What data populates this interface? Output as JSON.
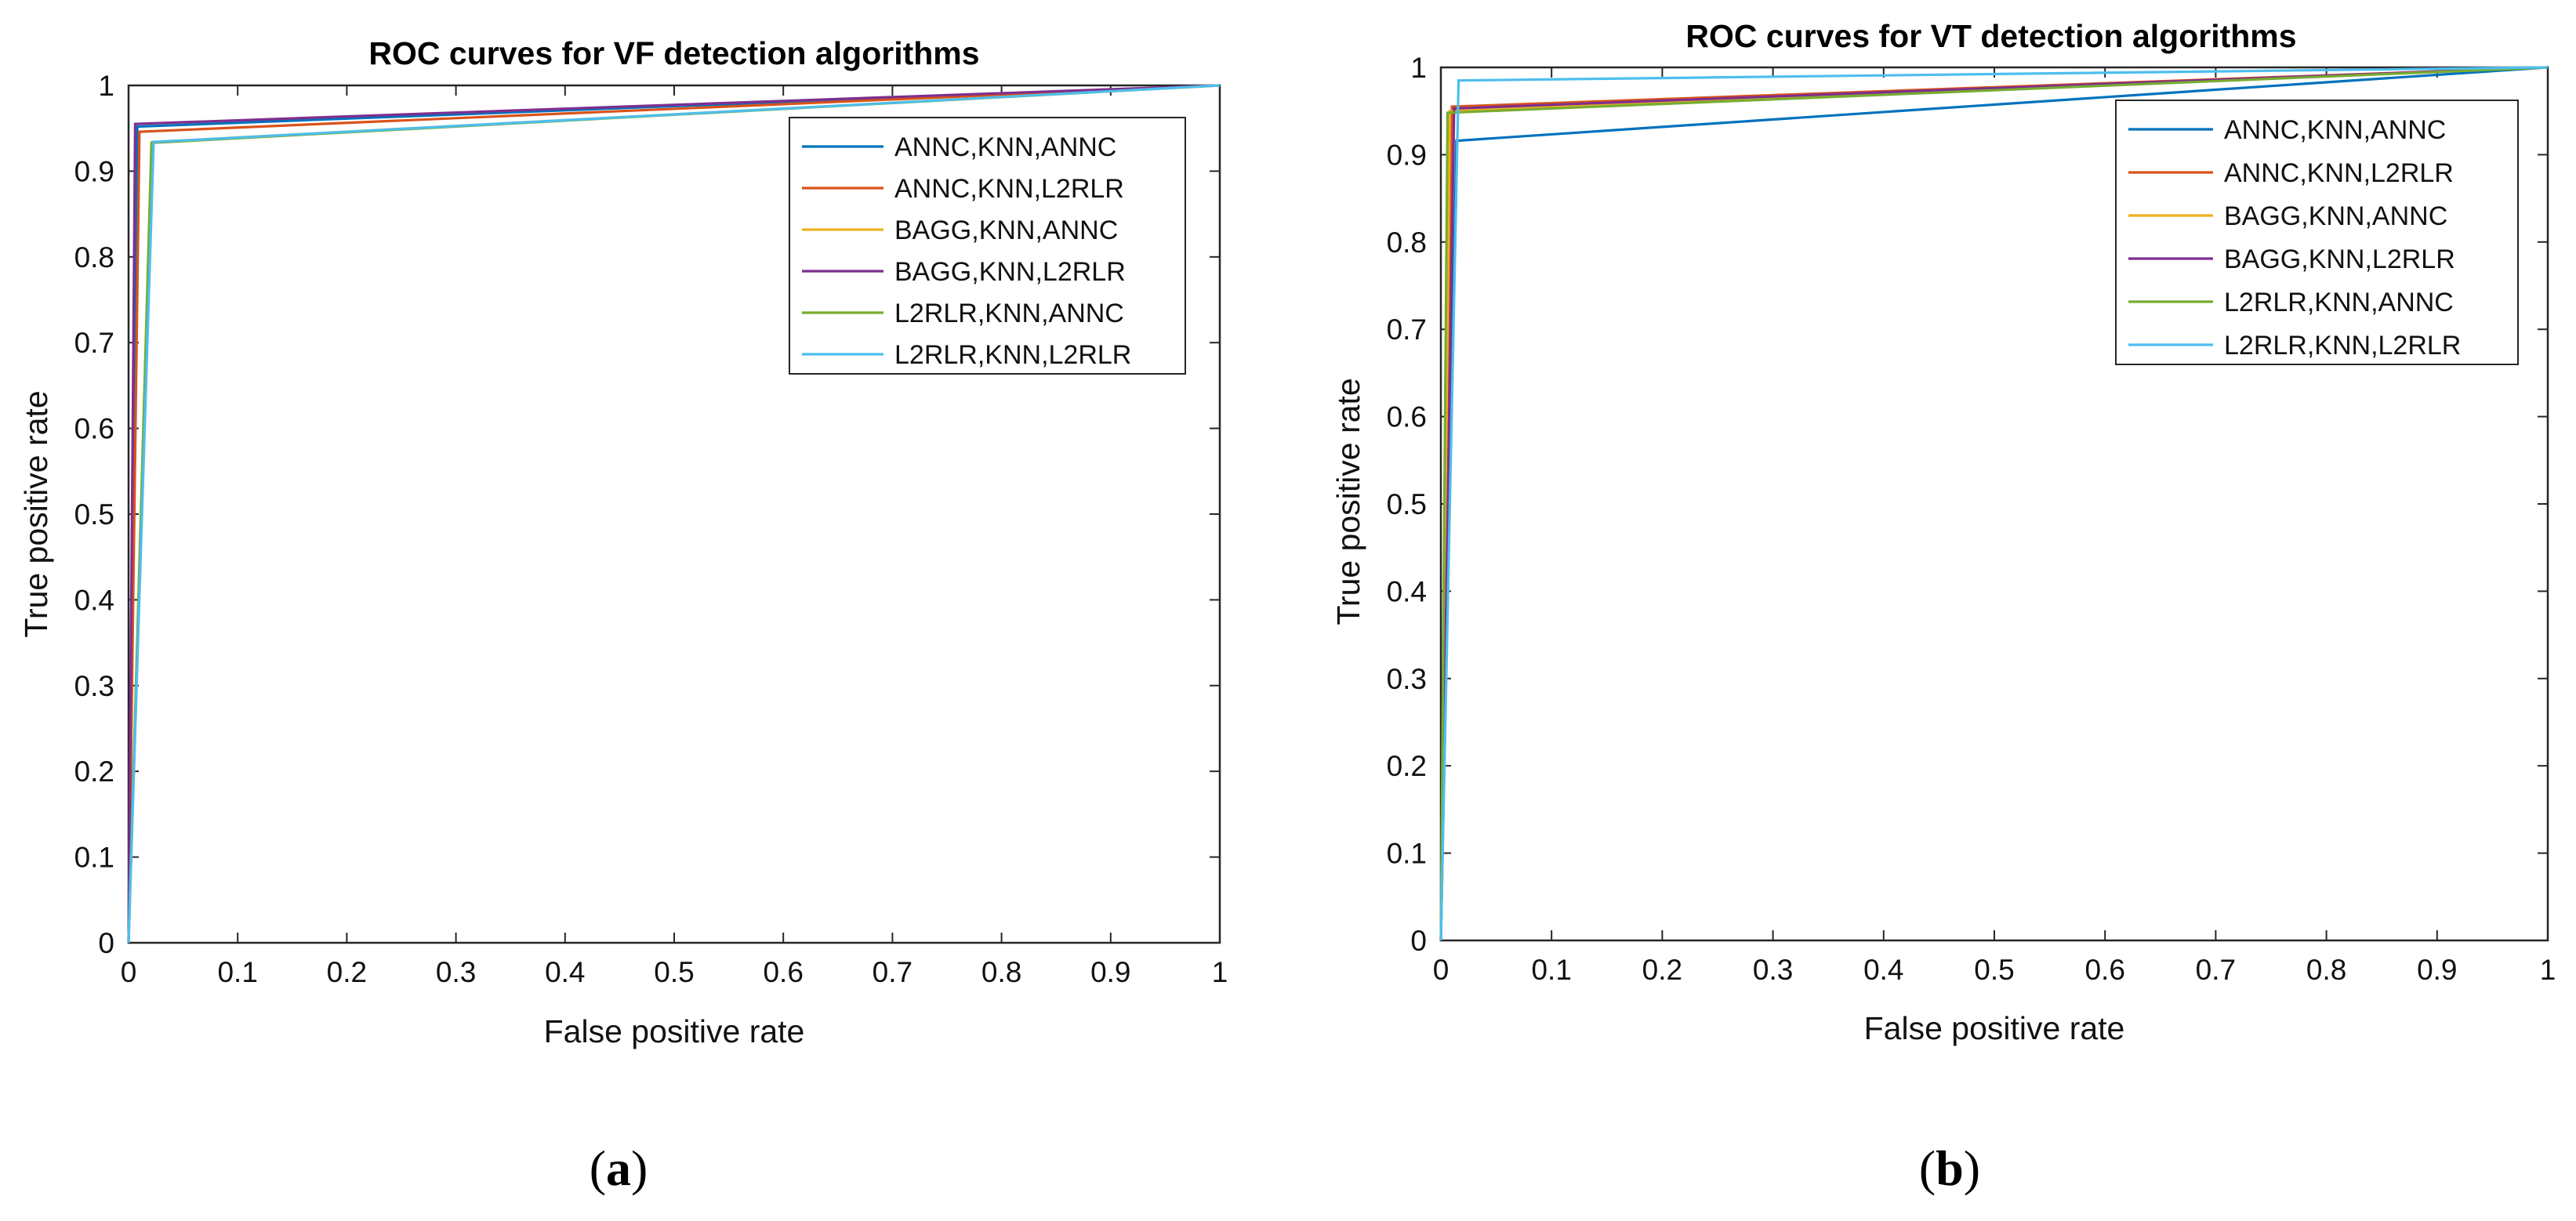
{
  "chart_data": [
    {
      "type": "line",
      "title": "ROC curves for VF detection algorithms",
      "xlabel": "False positive rate",
      "ylabel": "True positive rate",
      "xlim": [
        0,
        1
      ],
      "ylim": [
        0,
        1
      ],
      "xticks": [
        "0",
        "0.1",
        "0.2",
        "0.3",
        "0.4",
        "0.5",
        "0.6",
        "0.7",
        "0.8",
        "0.9",
        "1"
      ],
      "yticks": [
        "0",
        "0.1",
        "0.2",
        "0.3",
        "0.4",
        "0.5",
        "0.6",
        "0.7",
        "0.8",
        "0.9",
        "1"
      ],
      "grid": false,
      "legend_position": "top-right",
      "caption": "a",
      "series": [
        {
          "name": "ANNC,KNN,ANNC",
          "color": "#0072BD",
          "x": [
            0,
            0.008,
            1
          ],
          "y": [
            0,
            0.952,
            1
          ]
        },
        {
          "name": "ANNC,KNN,L2RLR",
          "color": "#D95319",
          "x": [
            0,
            0.01,
            1
          ],
          "y": [
            0,
            0.946,
            1
          ]
        },
        {
          "name": "BAGG,KNN,ANNC",
          "color": "#EDB120",
          "x": [
            0,
            0.022,
            1
          ],
          "y": [
            0,
            0.934,
            1
          ]
        },
        {
          "name": "BAGG,KNN,L2RLR",
          "color": "#7E2F8E",
          "x": [
            0,
            0.006,
            1
          ],
          "y": [
            0,
            0.955,
            1
          ]
        },
        {
          "name": "L2RLR,KNN,ANNC",
          "color": "#77AC30",
          "x": [
            0,
            0.021,
            1
          ],
          "y": [
            0,
            0.933,
            1
          ]
        },
        {
          "name": "L2RLR,KNN,L2RLR",
          "color": "#4DBEEE",
          "x": [
            0,
            0.023,
            1
          ],
          "y": [
            0,
            0.934,
            1
          ]
        }
      ]
    },
    {
      "type": "line",
      "title": "ROC curves for VT detection algorithms",
      "xlabel": "False positive rate",
      "ylabel": "True positive rate",
      "xlim": [
        0,
        1
      ],
      "ylim": [
        0,
        1
      ],
      "xticks": [
        "0",
        "0.1",
        "0.2",
        "0.3",
        "0.4",
        "0.5",
        "0.6",
        "0.7",
        "0.8",
        "0.9",
        "1"
      ],
      "yticks": [
        "0",
        "0.1",
        "0.2",
        "0.3",
        "0.4",
        "0.5",
        "0.6",
        "0.7",
        "0.8",
        "0.9",
        "1"
      ],
      "grid": false,
      "legend_position": "top-right",
      "caption": "b",
      "series": [
        {
          "name": "ANNC,KNN,ANNC",
          "color": "#0072BD",
          "x": [
            0,
            0.014,
            1
          ],
          "y": [
            0,
            0.916,
            1
          ]
        },
        {
          "name": "ANNC,KNN,L2RLR",
          "color": "#D95319",
          "x": [
            0,
            0.01,
            1
          ],
          "y": [
            0,
            0.955,
            1
          ]
        },
        {
          "name": "BAGG,KNN,ANNC",
          "color": "#EDB120",
          "x": [
            0,
            0.008,
            1
          ],
          "y": [
            0,
            0.95,
            1
          ]
        },
        {
          "name": "BAGG,KNN,L2RLR",
          "color": "#7E2F8E",
          "x": [
            0,
            0.012,
            1
          ],
          "y": [
            0,
            0.953,
            1
          ]
        },
        {
          "name": "L2RLR,KNN,ANNC",
          "color": "#77AC30",
          "x": [
            0,
            0.006,
            1
          ],
          "y": [
            0,
            0.948,
            1
          ]
        },
        {
          "name": "L2RLR,KNN,L2RLR",
          "color": "#4DBEEE",
          "x": [
            0,
            0.016,
            1
          ],
          "y": [
            0,
            0.985,
            1
          ]
        }
      ]
    }
  ]
}
